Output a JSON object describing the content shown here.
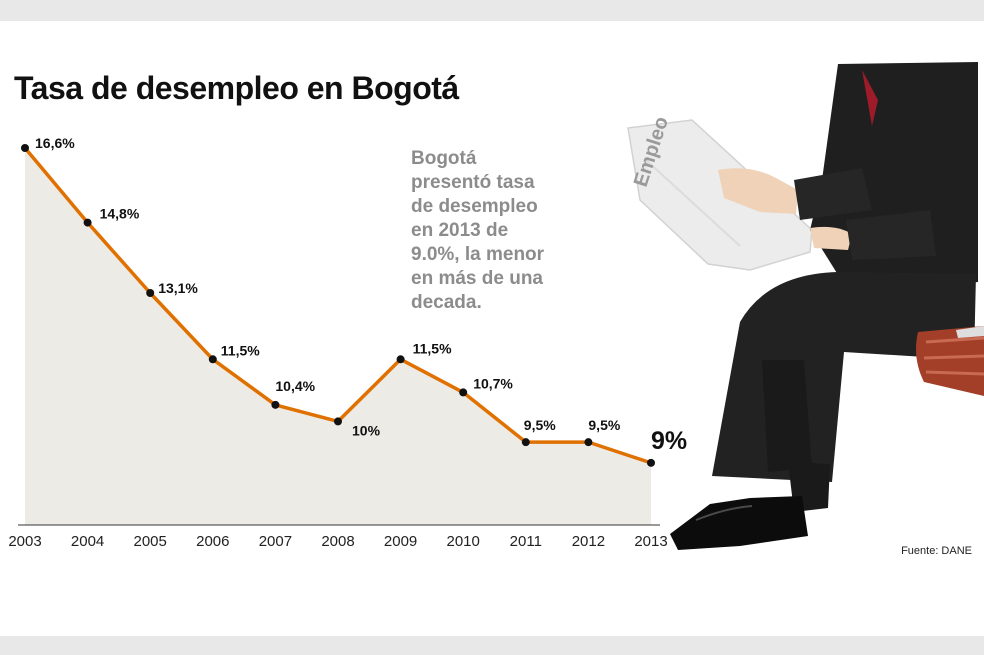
{
  "header": {
    "title": "Tasa de desempleo en Bogotá"
  },
  "annotation": {
    "text": "Bogotá\npresentó tasa\nde desempleo\nen 2013 de\n9.0%, la menor\nen más de una\ndecada."
  },
  "source": "Fuente: DANE",
  "illustration": {
    "newspaper_text": "Empleo"
  },
  "colors": {
    "line": "#e07000",
    "area": "#ecebe6",
    "point": "#111111",
    "title": "#111111",
    "annotation": "#8c8c8c",
    "background": "#ffffff",
    "band": "#e8e8e8"
  },
  "chart_data": {
    "type": "area",
    "title": "Tasa de desempleo en Bogotá",
    "x": [
      "2003",
      "2004",
      "2005",
      "2006",
      "2007",
      "2008",
      "2009",
      "2010",
      "2011",
      "2012",
      "2013"
    ],
    "values": [
      16.6,
      14.8,
      13.1,
      11.5,
      10.4,
      10.0,
      11.5,
      10.7,
      9.5,
      9.5,
      9.0
    ],
    "labels": [
      "16,6%",
      "14,8%",
      "13,1%",
      "11,5%",
      "10,4%",
      "10%",
      "11,5%",
      "10,7%",
      "9,5%",
      "9,5%",
      "9%"
    ],
    "ylim": [
      7.5,
      16.6
    ],
    "grid": false,
    "legend": "none",
    "xlabel": "",
    "ylabel": ""
  }
}
